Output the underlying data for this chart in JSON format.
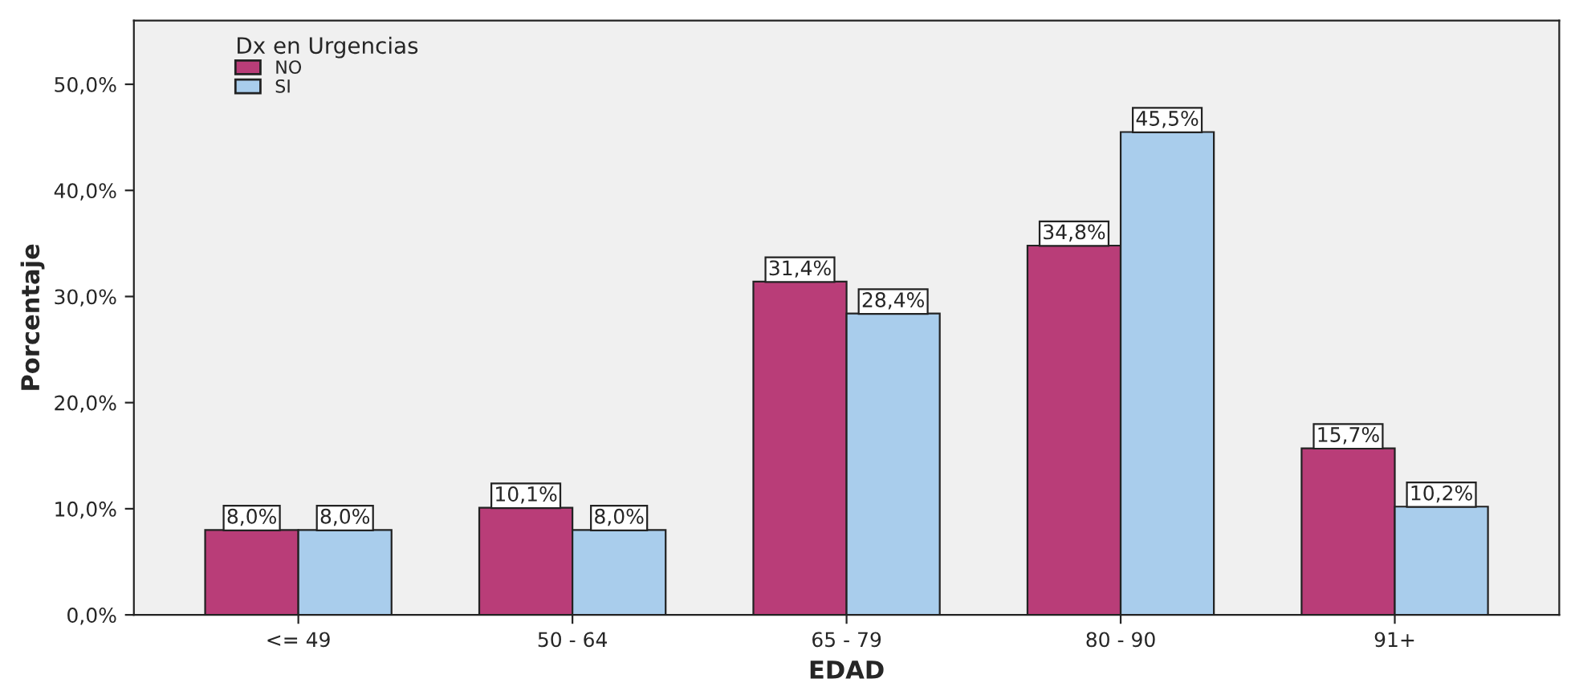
{
  "chart_data": {
    "type": "bar",
    "xlabel": "EDAD",
    "ylabel": "Porcentaje",
    "legend_title": "Dx en Urgencias",
    "legend": "top left",
    "categories": [
      "<= 49",
      "50 - 64",
      "65 - 79",
      "80 - 90",
      "91+"
    ],
    "series": [
      {
        "name": "NO",
        "color": "#b93d78",
        "values": [
          8.0,
          10.1,
          31.4,
          34.8,
          15.7
        ],
        "value_labels": [
          "8,0%",
          "10,1%",
          "31,4%",
          "34,8%",
          "15,7%"
        ]
      },
      {
        "name": "SI",
        "color": "#a9cdec",
        "values": [
          8.0,
          8.0,
          28.4,
          45.5,
          10.2
        ],
        "value_labels": [
          "8,0%",
          "8,0%",
          "28,4%",
          "45,5%",
          "10,2%"
        ]
      }
    ],
    "ylim": [
      0,
      56
    ],
    "yticks": [
      {
        "value": 0,
        "label": "0,0%"
      },
      {
        "value": 10,
        "label": "10,0%"
      },
      {
        "value": 20,
        "label": "20,0%"
      },
      {
        "value": 30,
        "label": "30,0%"
      },
      {
        "value": 40,
        "label": "40,0%"
      },
      {
        "value": 50,
        "label": "50,0%"
      }
    ]
  }
}
